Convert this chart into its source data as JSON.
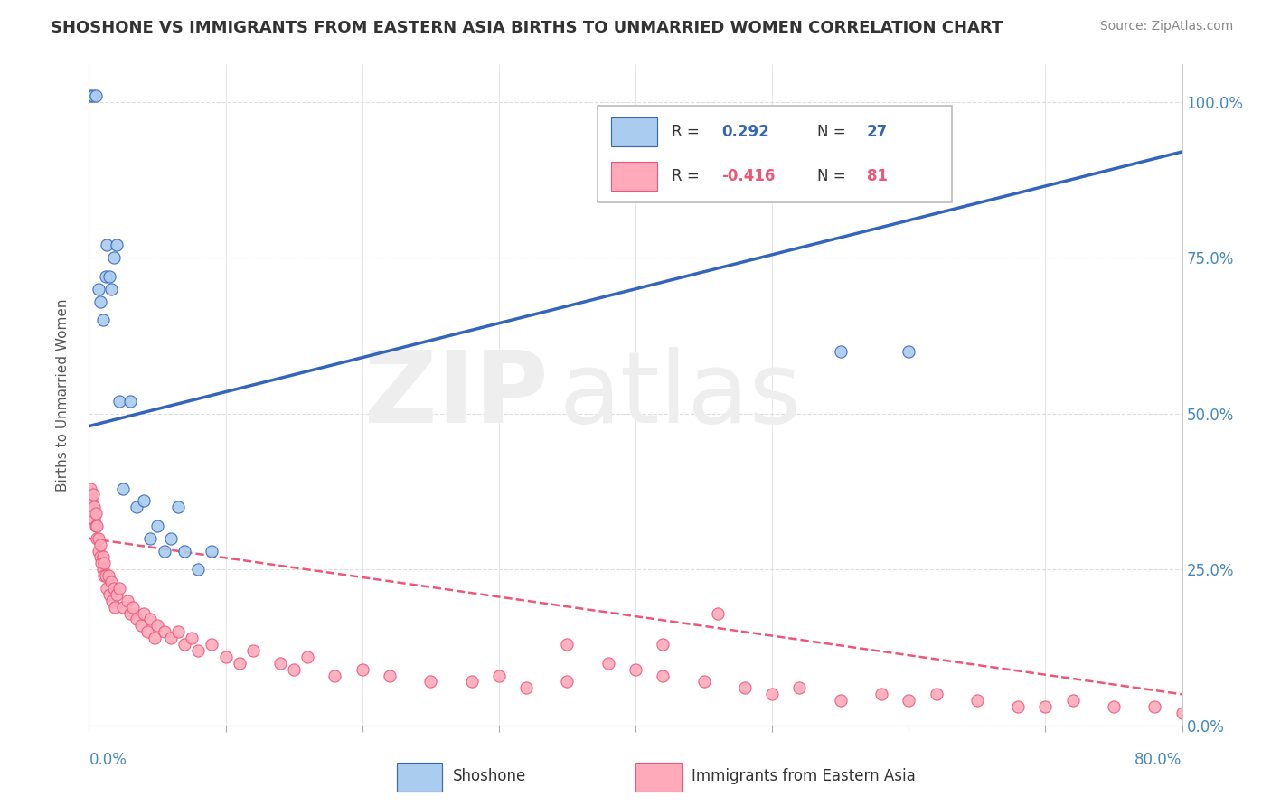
{
  "title": "SHOSHONE VS IMMIGRANTS FROM EASTERN ASIA BIRTHS TO UNMARRIED WOMEN CORRELATION CHART",
  "source": "Source: ZipAtlas.com",
  "ylabel": "Births to Unmarried Women",
  "legend_blue_label": "Shoshone",
  "legend_pink_label": "Immigrants from Eastern Asia",
  "blue_R": 0.292,
  "blue_N": 27,
  "pink_R": -0.416,
  "pink_N": 81,
  "blue_color": "#AACCEE",
  "pink_color": "#FFAABB",
  "blue_line_color": "#3366BB",
  "pink_line_color": "#EE5577",
  "xlim": [
    0.0,
    0.8
  ],
  "ylim": [
    0.0,
    1.06
  ],
  "yticks": [
    0.0,
    0.25,
    0.5,
    0.75,
    1.0
  ],
  "ytick_labels": [
    "0.0%",
    "25.0%",
    "50.0%",
    "75.0%",
    "100.0%"
  ],
  "blue_scatter_x": [
    0.001,
    0.003,
    0.005,
    0.007,
    0.008,
    0.01,
    0.012,
    0.013,
    0.015,
    0.016,
    0.018,
    0.02,
    0.022,
    0.025,
    0.03,
    0.035,
    0.04,
    0.045,
    0.05,
    0.055,
    0.06,
    0.065,
    0.07,
    0.08,
    0.09,
    0.55,
    0.6
  ],
  "blue_scatter_y": [
    1.01,
    1.01,
    1.01,
    0.7,
    0.68,
    0.65,
    0.72,
    0.77,
    0.72,
    0.7,
    0.75,
    0.77,
    0.52,
    0.38,
    0.52,
    0.35,
    0.36,
    0.3,
    0.32,
    0.28,
    0.3,
    0.35,
    0.28,
    0.25,
    0.28,
    0.6,
    0.6
  ],
  "pink_scatter_x": [
    0.001,
    0.002,
    0.003,
    0.004,
    0.004,
    0.005,
    0.005,
    0.006,
    0.006,
    0.007,
    0.007,
    0.008,
    0.008,
    0.009,
    0.01,
    0.01,
    0.011,
    0.011,
    0.012,
    0.013,
    0.014,
    0.015,
    0.016,
    0.017,
    0.018,
    0.019,
    0.02,
    0.022,
    0.025,
    0.028,
    0.03,
    0.032,
    0.035,
    0.038,
    0.04,
    0.043,
    0.045,
    0.048,
    0.05,
    0.055,
    0.06,
    0.065,
    0.07,
    0.075,
    0.08,
    0.09,
    0.1,
    0.11,
    0.12,
    0.14,
    0.15,
    0.16,
    0.18,
    0.2,
    0.22,
    0.25,
    0.28,
    0.3,
    0.32,
    0.35,
    0.38,
    0.4,
    0.42,
    0.45,
    0.48,
    0.5,
    0.52,
    0.55,
    0.58,
    0.6,
    0.62,
    0.65,
    0.68,
    0.7,
    0.72,
    0.75,
    0.78,
    0.8,
    0.35,
    0.42,
    0.46
  ],
  "pink_scatter_y": [
    0.38,
    0.36,
    0.37,
    0.33,
    0.35,
    0.32,
    0.34,
    0.3,
    0.32,
    0.28,
    0.3,
    0.27,
    0.29,
    0.26,
    0.25,
    0.27,
    0.24,
    0.26,
    0.24,
    0.22,
    0.24,
    0.21,
    0.23,
    0.2,
    0.22,
    0.19,
    0.21,
    0.22,
    0.19,
    0.2,
    0.18,
    0.19,
    0.17,
    0.16,
    0.18,
    0.15,
    0.17,
    0.14,
    0.16,
    0.15,
    0.14,
    0.15,
    0.13,
    0.14,
    0.12,
    0.13,
    0.11,
    0.1,
    0.12,
    0.1,
    0.09,
    0.11,
    0.08,
    0.09,
    0.08,
    0.07,
    0.07,
    0.08,
    0.06,
    0.07,
    0.1,
    0.09,
    0.08,
    0.07,
    0.06,
    0.05,
    0.06,
    0.04,
    0.05,
    0.04,
    0.05,
    0.04,
    0.03,
    0.03,
    0.04,
    0.03,
    0.03,
    0.02,
    0.13,
    0.13,
    0.18
  ],
  "blue_line_y0": 0.48,
  "blue_line_y1": 0.92,
  "pink_line_y0": 0.3,
  "pink_line_y1": 0.05
}
